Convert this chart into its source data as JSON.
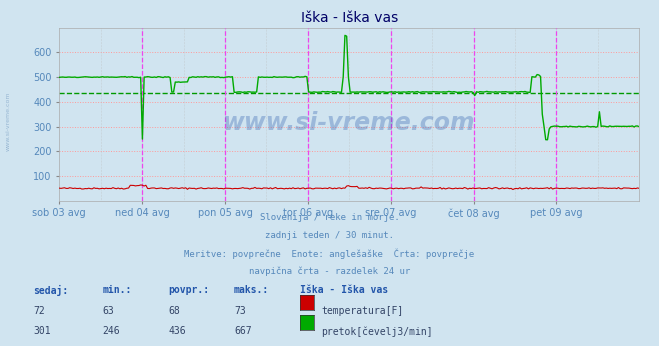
{
  "title": "Iška - Iška vas",
  "bg_color": "#d0e4f0",
  "plot_bg_color": "#d0e4f0",
  "grid_color_h": "#ff9999",
  "grid_color_v": "#bbbbbb",
  "vline_color": "#ee44ee",
  "title_color": "#000066",
  "text_color": "#5588bb",
  "ylim": [
    0,
    700
  ],
  "yticks": [
    100,
    200,
    300,
    400,
    500,
    600
  ],
  "n_points": 336,
  "days": [
    "sob 03 avg",
    "ned 04 avg",
    "pon 05 avg",
    "tor 06 avg",
    "sre 07 avg",
    "čet 08 avg",
    "pet 09 avg"
  ],
  "temp_color": "#cc0000",
  "flow_color": "#00aa00",
  "avg_line_color": "#009900",
  "avg_line_value": 436,
  "info_lines": [
    "Slovenija / reke in morje.",
    "zadnji teden / 30 minut.",
    "Meritve: povprečne  Enote: anglešaške  Črta: povprečje",
    "navpična črta - razdelek 24 ur"
  ],
  "table_headers": [
    "sedaj:",
    "min.:",
    "povpr.:",
    "maks.:"
  ],
  "table_station": "Iška - Iška vas",
  "table_rows": [
    {
      "sedaj": 72,
      "min": 63,
      "povpr": 68,
      "maks": 73,
      "label": "temperatura[F]",
      "color": "#cc0000"
    },
    {
      "sedaj": 301,
      "min": 246,
      "povpr": 436,
      "maks": 667,
      "label": "pretok[čevelj3/min]",
      "color": "#00aa00"
    }
  ],
  "watermark": "www.si-vreme.com",
  "sidebar_text": "www.si-vreme.com"
}
